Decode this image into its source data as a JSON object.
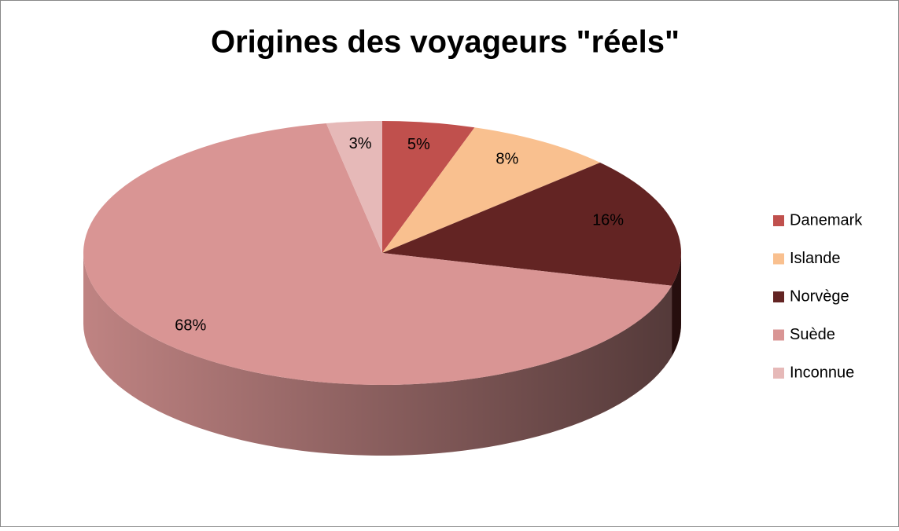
{
  "chart_data": {
    "type": "pie",
    "title": "Origines des voyageurs \"réels\"",
    "categories": [
      "Danemark",
      "Islande",
      "Norvège",
      "Suède",
      "Inconnue"
    ],
    "values": [
      5,
      8,
      16,
      68,
      3
    ],
    "value_labels": [
      "5%",
      "8%",
      "16%",
      "68%",
      "3%"
    ],
    "colors": [
      "#c0504d",
      "#f9c08f",
      "#632423",
      "#d99594",
      "#e6b9b8"
    ],
    "legend": "right"
  }
}
